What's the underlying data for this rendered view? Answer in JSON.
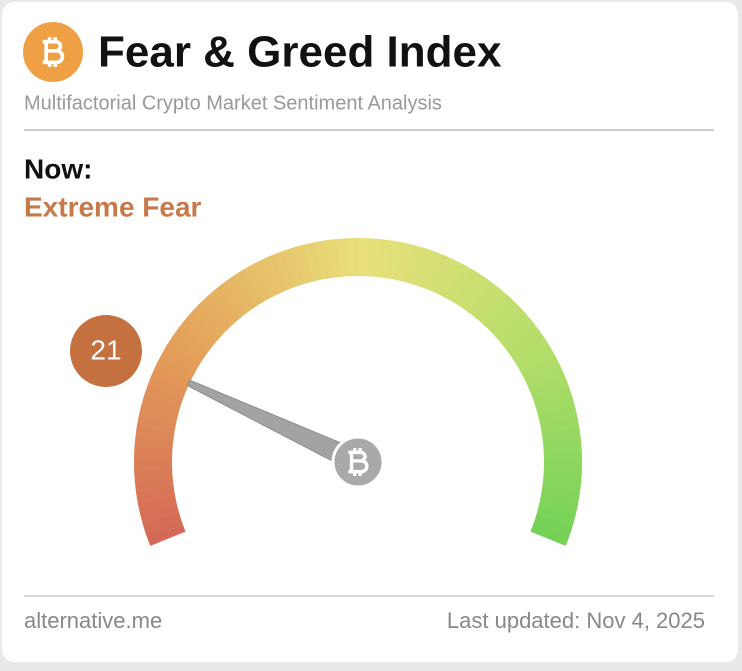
{
  "chart_data": {
    "type": "gauge",
    "title": "Fear & Greed Index",
    "subtitle": "Multifactorial Crypto Market Sentiment Analysis",
    "now_label": "Now:",
    "classification": "Extreme Fear",
    "value": 21,
    "ylim": [
      0,
      100
    ],
    "color": "#c4703f",
    "source": "alternative.me",
    "updated": "Last updated: Nov 4, 2025"
  }
}
